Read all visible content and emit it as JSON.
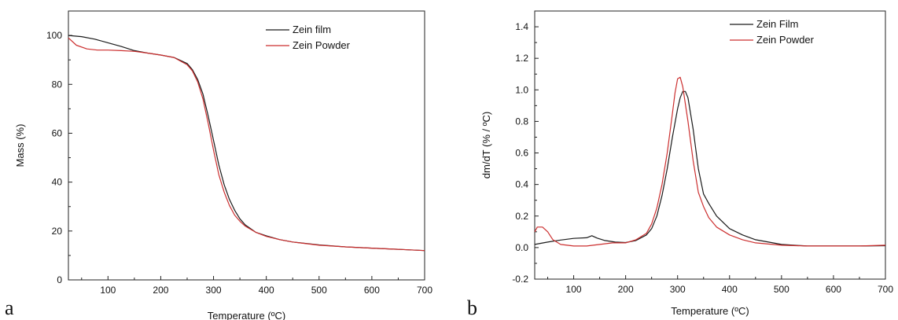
{
  "panels": [
    {
      "letter": "a"
    },
    {
      "letter": "b"
    }
  ],
  "chart_data": [
    {
      "type": "line",
      "xlabel": "Temperature (ºC)",
      "ylabel": "Mass (%)",
      "xlim": [
        25,
        700
      ],
      "ylim": [
        0,
        110
      ],
      "xticks": [
        100,
        200,
        300,
        400,
        500,
        600,
        700
      ],
      "yticks": [
        0,
        20,
        40,
        60,
        80,
        100
      ],
      "legend_position": "top-right",
      "series": [
        {
          "name": "Zein film",
          "color": "#1a1a1a",
          "x": [
            25,
            50,
            75,
            100,
            125,
            150,
            175,
            200,
            225,
            250,
            260,
            270,
            280,
            290,
            300,
            310,
            320,
            330,
            340,
            350,
            360,
            380,
            400,
            425,
            450,
            500,
            550,
            600,
            650,
            700
          ],
          "y": [
            100,
            99.5,
            98.5,
            97,
            95.5,
            93.8,
            92.8,
            92,
            91,
            88.5,
            86,
            82,
            76,
            67,
            57,
            47,
            39,
            33,
            28.5,
            25,
            22.5,
            19.5,
            18,
            16.5,
            15.5,
            14.3,
            13.5,
            13,
            12.5,
            12
          ]
        },
        {
          "name": "Zein Powder",
          "color": "#cc2f2f",
          "x": [
            25,
            40,
            60,
            80,
            100,
            125,
            150,
            175,
            200,
            225,
            250,
            260,
            270,
            280,
            290,
            300,
            310,
            320,
            330,
            340,
            350,
            360,
            380,
            400,
            425,
            450,
            500,
            550,
            600,
            650,
            700
          ],
          "y": [
            99,
            96,
            94.5,
            94,
            94,
            93.8,
            93.5,
            92.8,
            92,
            91,
            88,
            85.5,
            81,
            74,
            64,
            53,
            43,
            36,
            30.5,
            26.5,
            24,
            22,
            19.5,
            17.8,
            16.5,
            15.5,
            14.2,
            13.5,
            13,
            12.5,
            12
          ]
        }
      ]
    },
    {
      "type": "line",
      "xlabel": "Temperature (ºC)",
      "ylabel": "dm/dT (% / ºC)",
      "xlim": [
        25,
        700
      ],
      "ylim": [
        -0.2,
        1.5
      ],
      "xticks": [
        100,
        200,
        300,
        400,
        500,
        600,
        700
      ],
      "yticks": [
        -0.2,
        0.0,
        0.2,
        0.4,
        0.6,
        0.8,
        1.0,
        1.2,
        1.4
      ],
      "legend_position": "top-right",
      "series": [
        {
          "name": "Zein Film",
          "color": "#1a1a1a",
          "x": [
            25,
            50,
            75,
            100,
            125,
            135,
            145,
            160,
            180,
            200,
            220,
            240,
            250,
            260,
            270,
            280,
            290,
            300,
            305,
            310,
            315,
            320,
            330,
            340,
            350,
            360,
            375,
            400,
            425,
            450,
            500,
            550,
            600,
            650,
            700
          ],
          "y": [
            0.02,
            0.035,
            0.048,
            0.058,
            0.062,
            0.075,
            0.06,
            0.045,
            0.035,
            0.032,
            0.045,
            0.08,
            0.12,
            0.2,
            0.33,
            0.5,
            0.7,
            0.88,
            0.95,
            0.99,
            0.99,
            0.95,
            0.75,
            0.5,
            0.34,
            0.28,
            0.2,
            0.12,
            0.08,
            0.05,
            0.02,
            0.01,
            0.01,
            0.01,
            0.012
          ]
        },
        {
          "name": "Zein Powder",
          "color": "#cc2f2f",
          "x": [
            25,
            30,
            40,
            50,
            60,
            75,
            100,
            125,
            150,
            175,
            200,
            220,
            240,
            250,
            260,
            270,
            280,
            290,
            295,
            300,
            305,
            310,
            320,
            330,
            340,
            350,
            360,
            375,
            400,
            425,
            450,
            500,
            550,
            600,
            650,
            700
          ],
          "y": [
            0.1,
            0.13,
            0.13,
            0.1,
            0.05,
            0.02,
            0.01,
            0.01,
            0.02,
            0.03,
            0.03,
            0.05,
            0.09,
            0.15,
            0.25,
            0.4,
            0.6,
            0.85,
            0.98,
            1.07,
            1.08,
            1.02,
            0.8,
            0.55,
            0.35,
            0.26,
            0.19,
            0.13,
            0.08,
            0.05,
            0.03,
            0.015,
            0.01,
            0.01,
            0.01,
            0.015
          ]
        }
      ]
    }
  ]
}
